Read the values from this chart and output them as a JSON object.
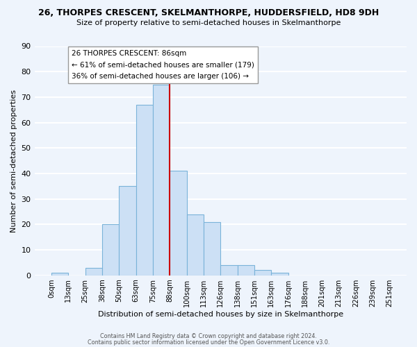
{
  "title_line1": "26, THORPES CRESCENT, SKELMANTHORPE, HUDDERSFIELD, HD8 9DH",
  "title_line2": "Size of property relative to semi-detached houses in Skelmanthorpe",
  "xlabel": "Distribution of semi-detached houses by size in Skelmanthorpe",
  "ylabel": "Number of semi-detached properties",
  "footer_line1": "Contains HM Land Registry data © Crown copyright and database right 2024.",
  "footer_line2": "Contains public sector information licensed under the Open Government Licence v3.0.",
  "bin_labels": [
    "0sqm",
    "13sqm",
    "25sqm",
    "38sqm",
    "50sqm",
    "63sqm",
    "75sqm",
    "88sqm",
    "100sqm",
    "113sqm",
    "126sqm",
    "138sqm",
    "151sqm",
    "163sqm",
    "176sqm",
    "188sqm",
    "201sqm",
    "213sqm",
    "226sqm",
    "239sqm",
    "251sqm"
  ],
  "bar_values": [
    1,
    0,
    3,
    20,
    35,
    67,
    75,
    41,
    24,
    21,
    4,
    4,
    2,
    1,
    0,
    0,
    0,
    0,
    0,
    0
  ],
  "bar_color": "#cce0f5",
  "bar_edge_color": "#7ab3d9",
  "marker_bin_index": 7,
  "marker_line_color": "#cc0000",
  "annotation_title": "26 THORPES CRESCENT: 86sqm",
  "annotation_line1": "← 61% of semi-detached houses are smaller (179)",
  "annotation_line2": "36% of semi-detached houses are larger (106) →",
  "ylim": [
    0,
    90
  ],
  "yticks": [
    0,
    10,
    20,
    30,
    40,
    50,
    60,
    70,
    80,
    90
  ],
  "background_color": "#eef4fc",
  "grid_color": "#ffffff",
  "annotation_box_color": "#ffffff",
  "annotation_box_edge": "#999999"
}
